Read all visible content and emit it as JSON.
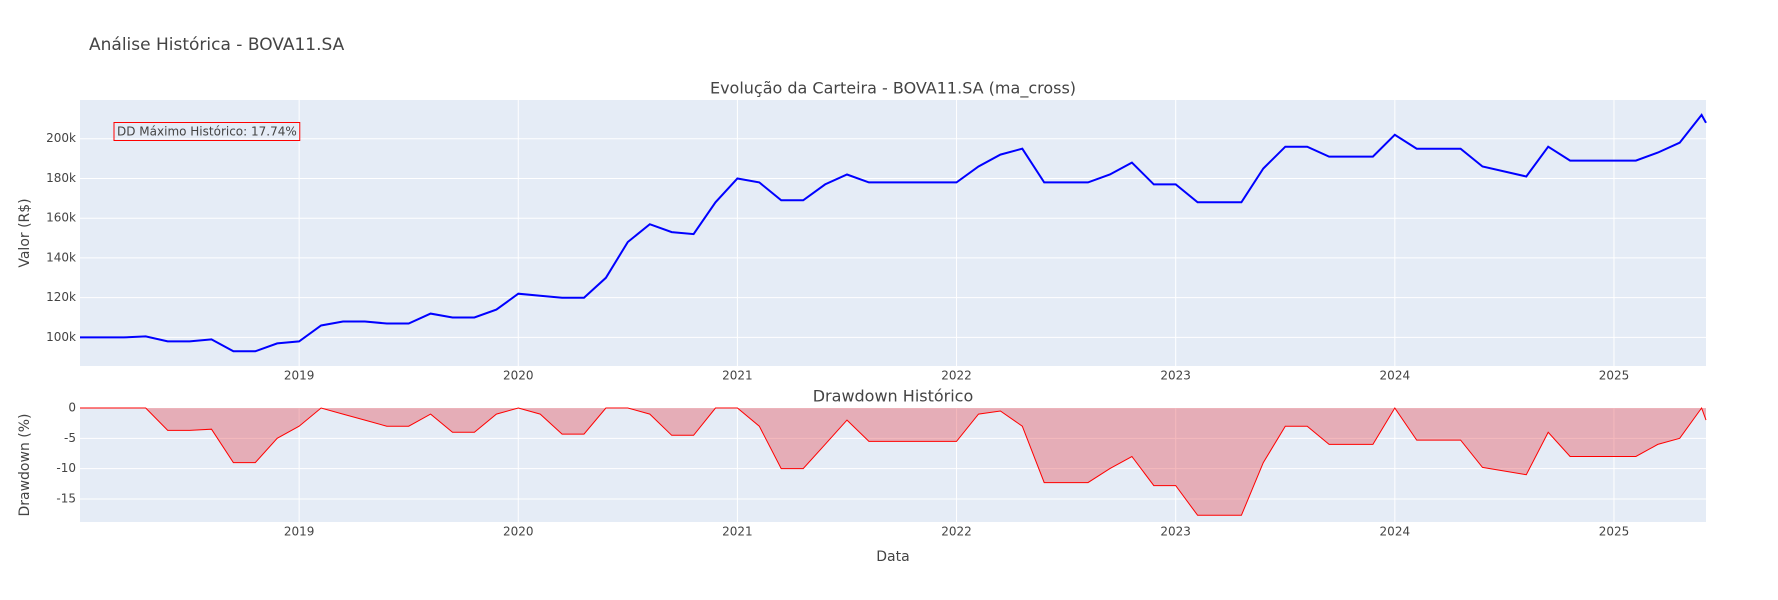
{
  "title": "Análise Histórica - BOVA11.SA",
  "chart_data": [
    {
      "type": "line",
      "title": "Evolução da Carteira - BOVA11.SA (ma_cross)",
      "ylabel": "Valor (R$)",
      "annotation": "DD Máximo Histórico: 17.74%",
      "x": [
        2018.0,
        2018.1,
        2018.2,
        2018.3,
        2018.4,
        2018.5,
        2018.6,
        2018.7,
        2018.8,
        2018.9,
        2019.0,
        2019.1,
        2019.2,
        2019.3,
        2019.4,
        2019.5,
        2019.6,
        2019.7,
        2019.8,
        2019.9,
        2020.0,
        2020.1,
        2020.2,
        2020.3,
        2020.4,
        2020.5,
        2020.6,
        2020.7,
        2020.8,
        2020.9,
        2021.0,
        2021.1,
        2021.2,
        2021.3,
        2021.4,
        2021.5,
        2021.6,
        2021.8,
        2022.0,
        2022.1,
        2022.2,
        2022.3,
        2022.4,
        2022.6,
        2022.7,
        2022.8,
        2022.9,
        2023.0,
        2023.1,
        2023.3,
        2023.4,
        2023.5,
        2023.6,
        2023.7,
        2023.9,
        2024.0,
        2024.1,
        2024.3,
        2024.4,
        2024.6,
        2024.7,
        2024.8,
        2025.0,
        2025.1,
        2025.2,
        2025.3,
        2025.4,
        2025.42
      ],
      "series": [
        {
          "name": "Valor",
          "color": "#0000ff",
          "values": [
            100000,
            100000,
            100000,
            100500,
            98000,
            98000,
            99000,
            93000,
            93000,
            97000,
            98000,
            106000,
            108000,
            108000,
            107000,
            107000,
            112000,
            110000,
            110000,
            114000,
            122000,
            121000,
            120000,
            120000,
            130000,
            148000,
            157000,
            153000,
            152000,
            168000,
            180000,
            178000,
            169000,
            169000,
            177000,
            182000,
            178000,
            178000,
            178000,
            186000,
            192000,
            195000,
            178000,
            178000,
            182000,
            188000,
            177000,
            177000,
            168000,
            168000,
            185000,
            196000,
            196000,
            191000,
            191000,
            202000,
            195000,
            195000,
            186000,
            181000,
            196000,
            189000,
            189000,
            189000,
            193000,
            198000,
            212000,
            208000
          ]
        }
      ],
      "xlim": [
        2018.0,
        2025.42
      ],
      "xticks": [
        2019,
        2020,
        2021,
        2022,
        2023,
        2024,
        2025
      ],
      "ylim": [
        85600,
        219500
      ],
      "yticks": [
        {
          "value": 100000,
          "label": "100k"
        },
        {
          "value": 120000,
          "label": "120k"
        },
        {
          "value": 140000,
          "label": "140k"
        },
        {
          "value": 160000,
          "label": "160k"
        },
        {
          "value": 180000,
          "label": "180k"
        },
        {
          "value": 200000,
          "label": "200k"
        }
      ],
      "grid": true
    },
    {
      "type": "area",
      "title": "Drawdown Histórico",
      "ylabel": "Drawdown (%)",
      "xlabel": "Data",
      "x": [
        2018.0,
        2018.1,
        2018.2,
        2018.3,
        2018.4,
        2018.5,
        2018.6,
        2018.7,
        2018.8,
        2018.9,
        2019.0,
        2019.1,
        2019.2,
        2019.3,
        2019.4,
        2019.5,
        2019.6,
        2019.7,
        2019.8,
        2019.9,
        2020.0,
        2020.1,
        2020.2,
        2020.3,
        2020.4,
        2020.5,
        2020.6,
        2020.7,
        2020.8,
        2020.9,
        2021.0,
        2021.1,
        2021.2,
        2021.3,
        2021.4,
        2021.5,
        2021.6,
        2021.8,
        2022.0,
        2022.1,
        2022.2,
        2022.3,
        2022.4,
        2022.6,
        2022.7,
        2022.8,
        2022.9,
        2023.0,
        2023.1,
        2023.3,
        2023.4,
        2023.5,
        2023.6,
        2023.7,
        2023.9,
        2024.0,
        2024.1,
        2024.3,
        2024.4,
        2024.6,
        2024.7,
        2024.8,
        2025.0,
        2025.1,
        2025.2,
        2025.3,
        2025.4,
        2025.42
      ],
      "series": [
        {
          "name": "Drawdown",
          "color": "#ff0000",
          "fill": "rgba(230,80,90,0.4)",
          "values": [
            0,
            0,
            0,
            0,
            -3.7,
            -3.7,
            -3.5,
            -9,
            -9,
            -5,
            -3,
            0,
            -1,
            -2,
            -3,
            -3,
            -1,
            -4,
            -4,
            -1,
            0,
            -1,
            -4.3,
            -4.3,
            0,
            0,
            -1,
            -4.5,
            -4.5,
            0,
            0,
            -3,
            -10,
            -10,
            -6,
            -2,
            -5.5,
            -5.5,
            -5.5,
            -1,
            -0.5,
            -3,
            -12.3,
            -12.3,
            -10,
            -8,
            -12.8,
            -12.8,
            -17.7,
            -17.7,
            -9,
            -3,
            -3,
            -6,
            -6,
            0,
            -5.3,
            -5.3,
            -9.8,
            -11,
            -4,
            -8,
            -8,
            -8,
            -6,
            -5,
            0,
            -2
          ]
        }
      ],
      "xlim": [
        2018.0,
        2025.42
      ],
      "xticks": [
        2019,
        2020,
        2021,
        2022,
        2023,
        2024,
        2025
      ],
      "ylim": [
        -18.8,
        0
      ],
      "yticks": [
        0,
        -5,
        -10,
        -15
      ],
      "grid": true
    }
  ]
}
